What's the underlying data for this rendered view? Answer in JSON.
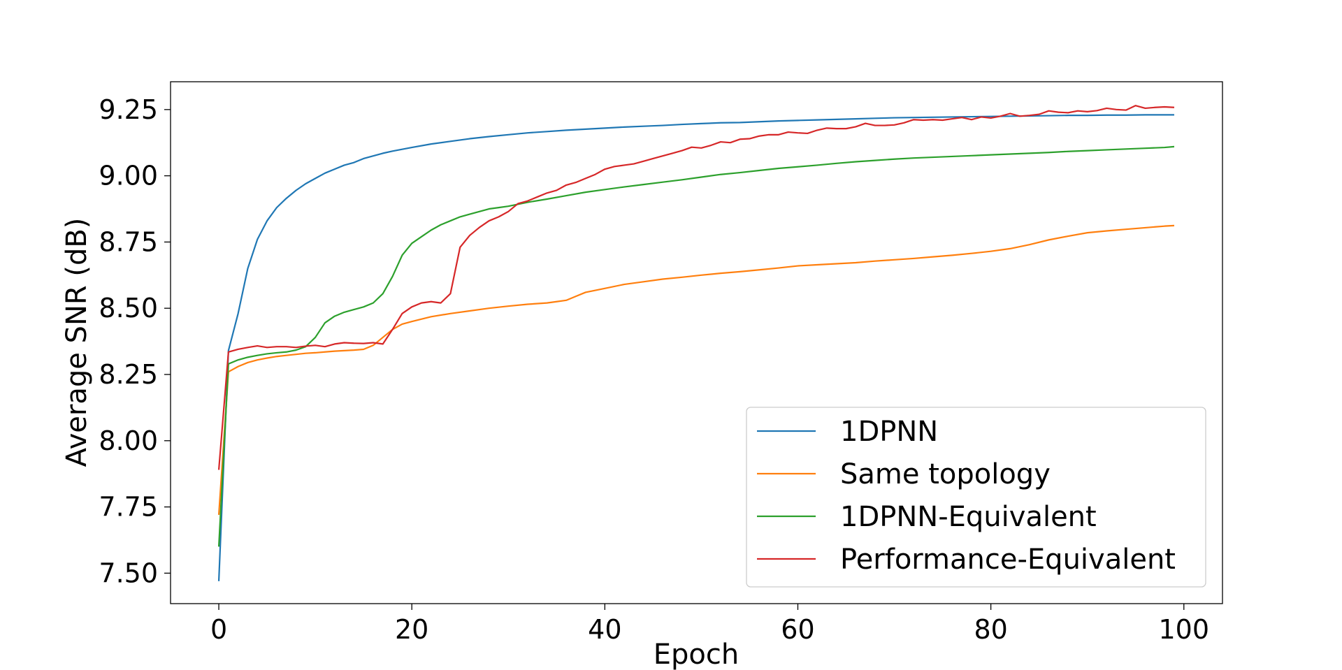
{
  "chart_data": {
    "type": "line",
    "title": "",
    "xlabel": "Epoch",
    "ylabel": "Average SNR (dB)",
    "xlim": [
      -5,
      104
    ],
    "ylim": [
      7.385,
      9.355
    ],
    "xticks": [
      0,
      20,
      40,
      60,
      80,
      100
    ],
    "yticks": [
      7.5,
      7.75,
      8.0,
      8.25,
      8.5,
      8.75,
      9.0,
      9.25
    ],
    "xtick_labels": [
      "0",
      "20",
      "40",
      "60",
      "80",
      "100"
    ],
    "ytick_labels": [
      "7.50",
      "7.75",
      "8.00",
      "8.25",
      "8.50",
      "8.75",
      "9.00",
      "9.25"
    ],
    "grid": false,
    "legend_position": "lower-right",
    "series": [
      {
        "name": "1DPNN",
        "color": "#1f77b4",
        "points": [
          [
            0,
            7.47
          ],
          [
            1,
            8.34
          ],
          [
            2,
            8.48
          ],
          [
            3,
            8.65
          ],
          [
            4,
            8.76
          ],
          [
            5,
            8.83
          ],
          [
            6,
            8.88
          ],
          [
            7,
            8.915
          ],
          [
            8,
            8.945
          ],
          [
            9,
            8.97
          ],
          [
            10,
            8.99
          ],
          [
            11,
            9.01
          ],
          [
            12,
            9.025
          ],
          [
            13,
            9.04
          ],
          [
            14,
            9.05
          ],
          [
            15,
            9.065
          ],
          [
            16,
            9.075
          ],
          [
            17,
            9.085
          ],
          [
            18,
            9.093
          ],
          [
            19,
            9.1
          ],
          [
            20,
            9.107
          ],
          [
            22,
            9.12
          ],
          [
            24,
            9.13
          ],
          [
            26,
            9.14
          ],
          [
            28,
            9.148
          ],
          [
            30,
            9.155
          ],
          [
            32,
            9.162
          ],
          [
            34,
            9.167
          ],
          [
            36,
            9.172
          ],
          [
            38,
            9.176
          ],
          [
            40,
            9.18
          ],
          [
            42,
            9.184
          ],
          [
            44,
            9.187
          ],
          [
            46,
            9.19
          ],
          [
            48,
            9.194
          ],
          [
            50,
            9.197
          ],
          [
            52,
            9.2
          ],
          [
            54,
            9.201
          ],
          [
            56,
            9.204
          ],
          [
            58,
            9.207
          ],
          [
            60,
            9.209
          ],
          [
            62,
            9.211
          ],
          [
            64,
            9.213
          ],
          [
            66,
            9.215
          ],
          [
            68,
            9.217
          ],
          [
            70,
            9.219
          ],
          [
            72,
            9.22
          ],
          [
            74,
            9.221
          ],
          [
            76,
            9.222
          ],
          [
            78,
            9.223
          ],
          [
            80,
            9.224
          ],
          [
            82,
            9.225
          ],
          [
            84,
            9.226
          ],
          [
            86,
            9.227
          ],
          [
            88,
            9.228
          ],
          [
            90,
            9.228
          ],
          [
            92,
            9.229
          ],
          [
            94,
            9.229
          ],
          [
            96,
            9.23
          ],
          [
            98,
            9.23
          ],
          [
            99,
            9.23
          ]
        ]
      },
      {
        "name": "Same topology",
        "color": "#ff7f0e",
        "points": [
          [
            0,
            7.72
          ],
          [
            1,
            8.26
          ],
          [
            2,
            8.28
          ],
          [
            3,
            8.295
          ],
          [
            4,
            8.305
          ],
          [
            5,
            8.312
          ],
          [
            6,
            8.318
          ],
          [
            7,
            8.322
          ],
          [
            8,
            8.326
          ],
          [
            9,
            8.33
          ],
          [
            10,
            8.332
          ],
          [
            11,
            8.335
          ],
          [
            12,
            8.338
          ],
          [
            13,
            8.34
          ],
          [
            14,
            8.342
          ],
          [
            15,
            8.345
          ],
          [
            16,
            8.36
          ],
          [
            17,
            8.39
          ],
          [
            18,
            8.42
          ],
          [
            19,
            8.44
          ],
          [
            20,
            8.45
          ],
          [
            22,
            8.468
          ],
          [
            24,
            8.48
          ],
          [
            26,
            8.49
          ],
          [
            28,
            8.5
          ],
          [
            30,
            8.508
          ],
          [
            32,
            8.515
          ],
          [
            34,
            8.52
          ],
          [
            35,
            8.525
          ],
          [
            36,
            8.53
          ],
          [
            37,
            8.545
          ],
          [
            38,
            8.56
          ],
          [
            40,
            8.575
          ],
          [
            42,
            8.59
          ],
          [
            44,
            8.6
          ],
          [
            46,
            8.61
          ],
          [
            48,
            8.617
          ],
          [
            50,
            8.625
          ],
          [
            52,
            8.632
          ],
          [
            54,
            8.638
          ],
          [
            56,
            8.645
          ],
          [
            58,
            8.652
          ],
          [
            60,
            8.66
          ],
          [
            62,
            8.664
          ],
          [
            64,
            8.668
          ],
          [
            66,
            8.672
          ],
          [
            68,
            8.678
          ],
          [
            70,
            8.683
          ],
          [
            72,
            8.688
          ],
          [
            74,
            8.694
          ],
          [
            76,
            8.7
          ],
          [
            78,
            8.707
          ],
          [
            80,
            8.715
          ],
          [
            82,
            8.725
          ],
          [
            84,
            8.74
          ],
          [
            86,
            8.758
          ],
          [
            88,
            8.772
          ],
          [
            90,
            8.785
          ],
          [
            92,
            8.792
          ],
          [
            94,
            8.798
          ],
          [
            96,
            8.804
          ],
          [
            98,
            8.81
          ],
          [
            99,
            8.812
          ]
        ]
      },
      {
        "name": "1DPNN-Equivalent",
        "color": "#2ca02c",
        "points": [
          [
            0,
            7.6
          ],
          [
            1,
            8.29
          ],
          [
            2,
            8.305
          ],
          [
            3,
            8.315
          ],
          [
            4,
            8.322
          ],
          [
            5,
            8.328
          ],
          [
            6,
            8.332
          ],
          [
            7,
            8.335
          ],
          [
            8,
            8.342
          ],
          [
            9,
            8.355
          ],
          [
            10,
            8.39
          ],
          [
            11,
            8.445
          ],
          [
            12,
            8.47
          ],
          [
            13,
            8.485
          ],
          [
            14,
            8.495
          ],
          [
            15,
            8.505
          ],
          [
            16,
            8.52
          ],
          [
            17,
            8.555
          ],
          [
            18,
            8.62
          ],
          [
            19,
            8.7
          ],
          [
            20,
            8.745
          ],
          [
            21,
            8.77
          ],
          [
            22,
            8.795
          ],
          [
            23,
            8.815
          ],
          [
            24,
            8.83
          ],
          [
            25,
            8.845
          ],
          [
            26,
            8.855
          ],
          [
            27,
            8.865
          ],
          [
            28,
            8.875
          ],
          [
            29,
            8.88
          ],
          [
            30,
            8.885
          ],
          [
            32,
            8.9
          ],
          [
            34,
            8.912
          ],
          [
            36,
            8.925
          ],
          [
            38,
            8.938
          ],
          [
            40,
            8.948
          ],
          [
            42,
            8.958
          ],
          [
            44,
            8.967
          ],
          [
            46,
            8.976
          ],
          [
            48,
            8.985
          ],
          [
            50,
            8.995
          ],
          [
            52,
            9.005
          ],
          [
            54,
            9.012
          ],
          [
            56,
            9.02
          ],
          [
            58,
            9.028
          ],
          [
            60,
            9.034
          ],
          [
            62,
            9.04
          ],
          [
            64,
            9.047
          ],
          [
            66,
            9.053
          ],
          [
            68,
            9.058
          ],
          [
            70,
            9.063
          ],
          [
            72,
            9.067
          ],
          [
            74,
            9.07
          ],
          [
            76,
            9.073
          ],
          [
            78,
            9.076
          ],
          [
            80,
            9.079
          ],
          [
            82,
            9.082
          ],
          [
            84,
            9.085
          ],
          [
            86,
            9.088
          ],
          [
            88,
            9.092
          ],
          [
            90,
            9.095
          ],
          [
            92,
            9.098
          ],
          [
            94,
            9.101
          ],
          [
            96,
            9.104
          ],
          [
            98,
            9.107
          ],
          [
            99,
            9.11
          ]
        ]
      },
      {
        "name": "Performance-Equivalent",
        "color": "#d62728",
        "points": [
          [
            0,
            7.89
          ],
          [
            1,
            8.335
          ],
          [
            2,
            8.345
          ],
          [
            3,
            8.352
          ],
          [
            4,
            8.358
          ],
          [
            5,
            8.352
          ],
          [
            6,
            8.355
          ],
          [
            7,
            8.355
          ],
          [
            8,
            8.352
          ],
          [
            9,
            8.357
          ],
          [
            10,
            8.36
          ],
          [
            11,
            8.355
          ],
          [
            12,
            8.365
          ],
          [
            13,
            8.37
          ],
          [
            14,
            8.368
          ],
          [
            15,
            8.367
          ],
          [
            16,
            8.37
          ],
          [
            17,
            8.365
          ],
          [
            18,
            8.42
          ],
          [
            19,
            8.48
          ],
          [
            20,
            8.505
          ],
          [
            21,
            8.52
          ],
          [
            22,
            8.525
          ],
          [
            23,
            8.52
          ],
          [
            24,
            8.555
          ],
          [
            25,
            8.73
          ],
          [
            26,
            8.775
          ],
          [
            27,
            8.805
          ],
          [
            28,
            8.83
          ],
          [
            29,
            8.845
          ],
          [
            30,
            8.865
          ],
          [
            31,
            8.895
          ],
          [
            32,
            8.905
          ],
          [
            33,
            8.92
          ],
          [
            34,
            8.935
          ],
          [
            35,
            8.945
          ],
          [
            36,
            8.965
          ],
          [
            37,
            8.975
          ],
          [
            38,
            8.99
          ],
          [
            39,
            9.005
          ],
          [
            40,
            9.025
          ],
          [
            41,
            9.035
          ],
          [
            42,
            9.04
          ],
          [
            43,
            9.045
          ],
          [
            44,
            9.055
          ],
          [
            45,
            9.065
          ],
          [
            46,
            9.075
          ],
          [
            47,
            9.085
          ],
          [
            48,
            9.095
          ],
          [
            49,
            9.108
          ],
          [
            50,
            9.105
          ],
          [
            51,
            9.115
          ],
          [
            52,
            9.128
          ],
          [
            53,
            9.125
          ],
          [
            54,
            9.138
          ],
          [
            55,
            9.14
          ],
          [
            56,
            9.15
          ],
          [
            57,
            9.155
          ],
          [
            58,
            9.155
          ],
          [
            59,
            9.165
          ],
          [
            60,
            9.162
          ],
          [
            61,
            9.16
          ],
          [
            62,
            9.172
          ],
          [
            63,
            9.18
          ],
          [
            64,
            9.178
          ],
          [
            65,
            9.178
          ],
          [
            66,
            9.185
          ],
          [
            67,
            9.198
          ],
          [
            68,
            9.19
          ],
          [
            69,
            9.19
          ],
          [
            70,
            9.192
          ],
          [
            71,
            9.2
          ],
          [
            72,
            9.212
          ],
          [
            73,
            9.21
          ],
          [
            74,
            9.212
          ],
          [
            75,
            9.21
          ],
          [
            76,
            9.215
          ],
          [
            77,
            9.22
          ],
          [
            78,
            9.212
          ],
          [
            79,
            9.222
          ],
          [
            80,
            9.218
          ],
          [
            81,
            9.225
          ],
          [
            82,
            9.235
          ],
          [
            83,
            9.225
          ],
          [
            84,
            9.228
          ],
          [
            85,
            9.232
          ],
          [
            86,
            9.245
          ],
          [
            87,
            9.24
          ],
          [
            88,
            9.238
          ],
          [
            89,
            9.245
          ],
          [
            90,
            9.242
          ],
          [
            91,
            9.246
          ],
          [
            92,
            9.255
          ],
          [
            93,
            9.25
          ],
          [
            94,
            9.248
          ],
          [
            95,
            9.265
          ],
          [
            96,
            9.255
          ],
          [
            97,
            9.258
          ],
          [
            98,
            9.26
          ],
          [
            99,
            9.258
          ]
        ]
      }
    ]
  }
}
